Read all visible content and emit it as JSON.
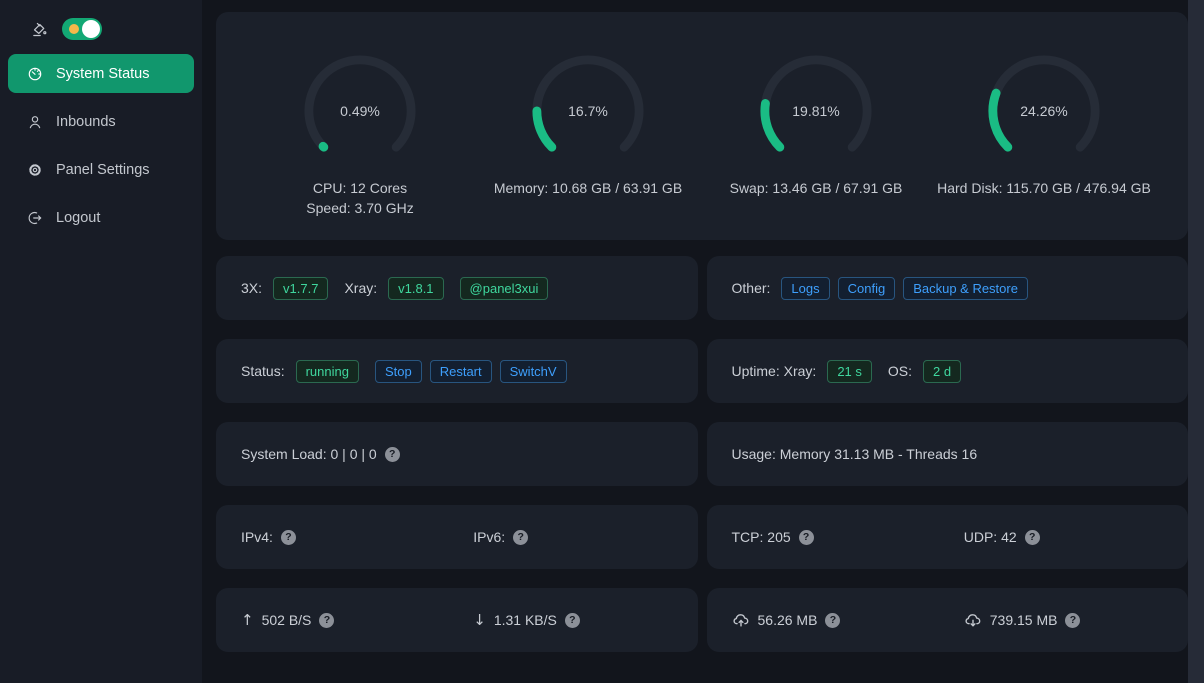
{
  "theme": {
    "accent_green": "#1abc84",
    "accent_blue": "#3e9ffc",
    "sidebar_bg": "#181c26",
    "card_bg": "#1b202a",
    "page_bg": "#12151c"
  },
  "icons": {
    "help_glyph": "?",
    "up_arrow": "↑",
    "down_arrow": "↓"
  },
  "sidebar": {
    "theme_toggle_on": true,
    "items": [
      {
        "label": "System Status",
        "icon": "dashboard",
        "active": true
      },
      {
        "label": "Inbounds",
        "icon": "user",
        "active": false
      },
      {
        "label": "Panel Settings",
        "icon": "gear",
        "active": false
      },
      {
        "label": "Logout",
        "icon": "logout",
        "active": false
      }
    ]
  },
  "gauges": [
    {
      "id": "cpu",
      "percent": 0.49,
      "value_label": "0.49%",
      "caption1": "CPU: 12 Cores",
      "caption2": "Speed: 3.70 GHz"
    },
    {
      "id": "memory",
      "percent": 16.7,
      "value_label": "16.7%",
      "caption1": "Memory: 10.68 GB / 63.91 GB",
      "caption2": ""
    },
    {
      "id": "swap",
      "percent": 19.81,
      "value_label": "19.81%",
      "caption1": "Swap: 13.46 GB / 67.91 GB",
      "caption2": ""
    },
    {
      "id": "disk",
      "percent": 24.26,
      "value_label": "24.26%",
      "caption1": "Hard Disk: 115.70 GB / 476.94 GB",
      "caption2": ""
    }
  ],
  "rows": {
    "version": {
      "label": "3X:",
      "panel_tag": "v1.7.7",
      "xray_label": "Xray:",
      "xray_tag": "v1.8.1",
      "handle_tag": "@panel3xui"
    },
    "other": {
      "label": "Other:",
      "buttons": [
        "Logs",
        "Config",
        "Backup & Restore"
      ]
    },
    "status": {
      "label": "Status:",
      "state_tag": "running",
      "actions": [
        "Stop",
        "Restart",
        "SwitchV"
      ]
    },
    "uptime": {
      "label": "Uptime: Xray:",
      "xray_tag": "21 s",
      "os_label": "OS:",
      "os_tag": "2 d"
    },
    "load": {
      "text": "System Load: 0 | 0 | 0"
    },
    "usage": {
      "text": "Usage: Memory 31.13 MB - Threads 16"
    },
    "ip": {
      "v4_label": "IPv4:",
      "v6_label": "IPv6:"
    },
    "conn": {
      "tcp_text": "TCP: 205",
      "udp_text": "UDP: 42"
    },
    "speed": {
      "up_text": "502 B/S",
      "down_text": "1.31 KB/S"
    },
    "traffic": {
      "sent_text": "56.26 MB",
      "received_text": "739.15 MB"
    }
  }
}
